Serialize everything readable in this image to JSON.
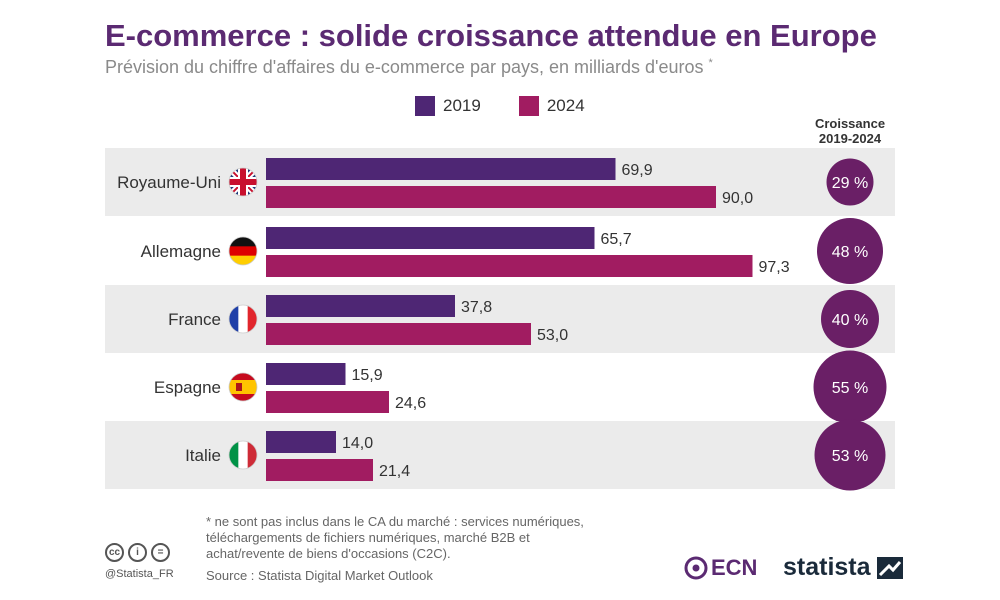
{
  "title": "E-commerce : solide croissance attendue en Europe",
  "subtitle": "Prévision du chiffre d'affaires du e-commerce par pays, en milliards d'euros",
  "subtitle_mark": "*",
  "growth_header": "Croissance 2019-2024",
  "colors": {
    "s2019": "#4e2674",
    "s2024": "#a11c61",
    "band": "#ebebeb",
    "circle": "#6a1f66"
  },
  "flag_icons": [
    "uk-flag-icon",
    "germany-flag-icon",
    "france-flag-icon",
    "spain-flag-icon",
    "italy-flag-icon"
  ],
  "chart_data": {
    "type": "bar",
    "orientation": "horizontal",
    "categories": [
      "Royaume-Uni",
      "Allemagne",
      "France",
      "Espagne",
      "Italie"
    ],
    "series": [
      {
        "name": "2019",
        "values": [
          69.9,
          65.7,
          37.8,
          15.9,
          14.0
        ],
        "labels": [
          "69,9",
          "65,7",
          "37,8",
          "15,9",
          "14,0"
        ]
      },
      {
        "name": "2024",
        "values": [
          90.0,
          97.3,
          53.0,
          24.6,
          21.4
        ],
        "labels": [
          "90,0",
          "97,3",
          "53,0",
          "24,6",
          "21,4"
        ]
      }
    ],
    "growth": [
      "29 %",
      "48 %",
      "40 %",
      "55 %",
      "53 %"
    ],
    "growth_values": [
      29,
      48,
      40,
      55,
      53
    ],
    "legend_position": "top"
  },
  "footnote": "* ne sont pas inclus dans le CA du marché : services numériques,\n   téléchargements de fichiers numériques, marché B2B et\n   achat/revente de biens d'occasions (C2C).",
  "source": "Source : Statista Digital Market Outlook",
  "handle": "@Statista_FR",
  "cc_icons": [
    "cc",
    "i",
    "="
  ],
  "ecn_logo_text": "ECN",
  "statista_logo_text": "statista"
}
